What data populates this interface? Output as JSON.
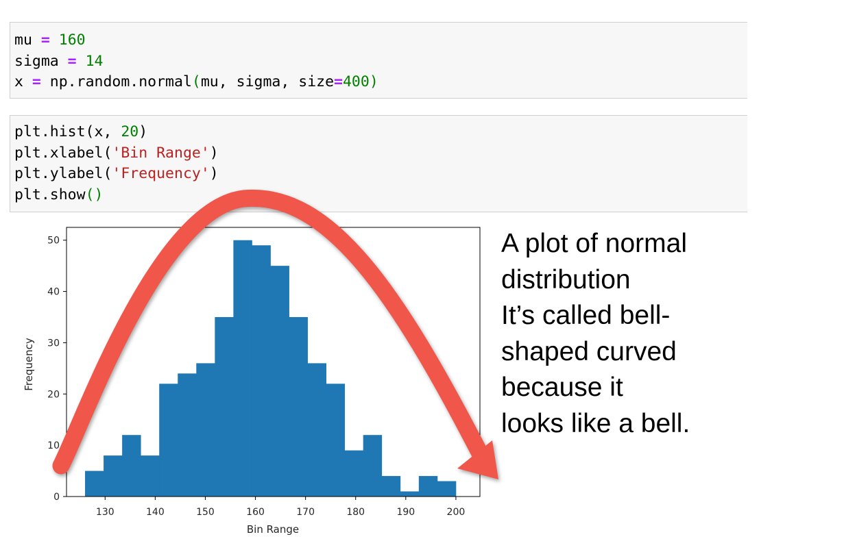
{
  "cells": {
    "cell1": [
      [
        {
          "t": "mu ",
          "c": ""
        },
        {
          "t": "=",
          "c": "op"
        },
        {
          "t": " ",
          "c": ""
        },
        {
          "t": "160",
          "c": "num"
        }
      ],
      [
        {
          "t": "sigma ",
          "c": ""
        },
        {
          "t": "=",
          "c": "op"
        },
        {
          "t": " ",
          "c": ""
        },
        {
          "t": "14",
          "c": "num"
        }
      ],
      [
        {
          "t": "x ",
          "c": ""
        },
        {
          "t": "=",
          "c": "op"
        },
        {
          "t": " np.random.normal",
          "c": ""
        },
        {
          "t": "(",
          "c": "paren"
        },
        {
          "t": "mu, sigma, size",
          "c": ""
        },
        {
          "t": "=",
          "c": "op"
        },
        {
          "t": "400",
          "c": "num"
        },
        {
          "t": ")",
          "c": "paren"
        }
      ]
    ],
    "cell2": [
      [
        {
          "t": "plt.hist(x, ",
          "c": ""
        },
        {
          "t": "20",
          "c": "num"
        },
        {
          "t": ")",
          "c": ""
        }
      ],
      [
        {
          "t": "plt.xlabel(",
          "c": ""
        },
        {
          "t": "'Bin Range'",
          "c": "str"
        },
        {
          "t": ")",
          "c": ""
        }
      ],
      [
        {
          "t": "plt.ylabel(",
          "c": ""
        },
        {
          "t": "'Frequency'",
          "c": "str"
        },
        {
          "t": ")",
          "c": ""
        }
      ],
      [
        {
          "t": "plt.show",
          "c": ""
        },
        {
          "t": "()",
          "c": "paren"
        }
      ]
    ]
  },
  "annotation": {
    "lines": [
      "A plot of normal",
      "distribution",
      "It’s called bell-",
      "shaped curved",
      "because it",
      "looks like a bell."
    ]
  },
  "colors": {
    "bar": "#1f77b4",
    "arrow": "#f0574a",
    "code_background": "#f7f7f7"
  },
  "chart_data": {
    "type": "bar",
    "xlabel": "Bin Range",
    "ylabel": "Frequency",
    "xlim": [
      122.3,
      204.8
    ],
    "ylim": [
      0,
      52.5
    ],
    "xticks": [
      130,
      140,
      150,
      160,
      170,
      180,
      190,
      200
    ],
    "yticks": [
      0,
      10,
      20,
      30,
      40,
      50
    ],
    "bins": [
      {
        "x0": 126.0,
        "x1": 129.7,
        "value": 5
      },
      {
        "x0": 129.7,
        "x1": 133.4,
        "value": 8
      },
      {
        "x0": 133.4,
        "x1": 137.1,
        "value": 12
      },
      {
        "x0": 137.1,
        "x1": 140.8,
        "value": 8
      },
      {
        "x0": 140.8,
        "x1": 144.5,
        "value": 22
      },
      {
        "x0": 144.5,
        "x1": 148.2,
        "value": 24
      },
      {
        "x0": 148.2,
        "x1": 151.9,
        "value": 26
      },
      {
        "x0": 151.9,
        "x1": 155.6,
        "value": 35
      },
      {
        "x0": 155.6,
        "x1": 159.3,
        "value": 50
      },
      {
        "x0": 159.3,
        "x1": 163.0,
        "value": 49
      },
      {
        "x0": 163.0,
        "x1": 166.7,
        "value": 45
      },
      {
        "x0": 166.7,
        "x1": 170.4,
        "value": 35
      },
      {
        "x0": 170.4,
        "x1": 174.1,
        "value": 26
      },
      {
        "x0": 174.1,
        "x1": 177.8,
        "value": 22
      },
      {
        "x0": 177.8,
        "x1": 181.5,
        "value": 9
      },
      {
        "x0": 181.5,
        "x1": 185.2,
        "value": 12
      },
      {
        "x0": 185.2,
        "x1": 188.9,
        "value": 4
      },
      {
        "x0": 188.9,
        "x1": 192.6,
        "value": 1
      },
      {
        "x0": 192.6,
        "x1": 196.3,
        "value": 4
      },
      {
        "x0": 196.3,
        "x1": 200.0,
        "value": 3
      }
    ]
  }
}
